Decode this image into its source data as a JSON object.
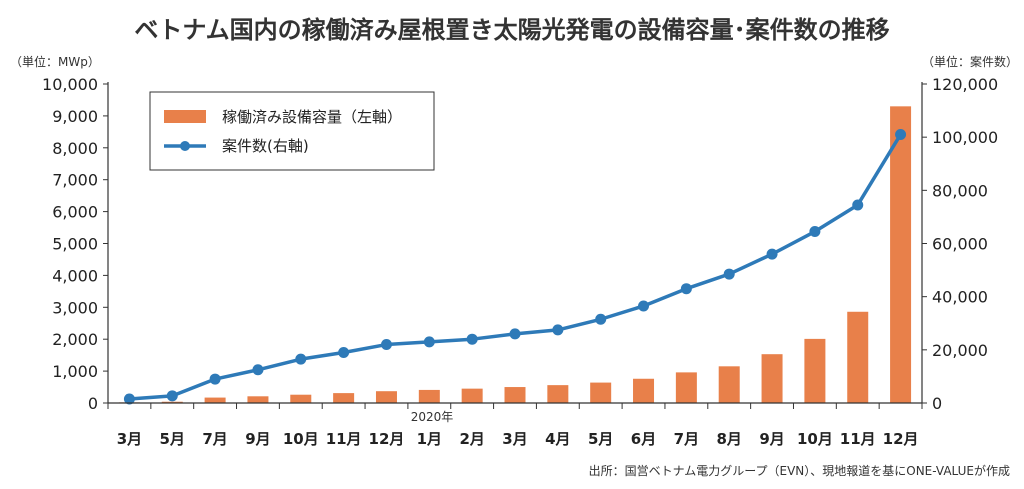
{
  "chart_data": {
    "type": "bar+line",
    "title": "ベトナム国内の稼働済み屋根置き太陽光発電の設備容量･案件数の推移",
    "left_unit": "（単位：MWp）",
    "right_unit": "（単位：案件数）",
    "year_label": "2020年",
    "source": "出所：国営ベトナム電力グループ（EVN）、現地報道を基にONE-VALUEが作成",
    "categories": [
      "3月",
      "5月",
      "7月",
      "9月",
      "10月",
      "11月",
      "12月",
      "1月",
      "2月",
      "3月",
      "4月",
      "5月",
      "6月",
      "7月",
      "8月",
      "9月",
      "10月",
      "11月",
      "12月"
    ],
    "left_axis": {
      "min": 0,
      "max": 10000,
      "ticks": [
        0,
        1000,
        2000,
        3000,
        4000,
        5000,
        6000,
        7000,
        8000,
        9000,
        10000
      ],
      "tick_labels": [
        "0",
        "1,000",
        "2,000",
        "3,000",
        "4,000",
        "5,000",
        "6,000",
        "7,000",
        "8,000",
        "9,000",
        "10,000"
      ]
    },
    "right_axis": {
      "min": 0,
      "max": 120000,
      "ticks": [
        0,
        20000,
        40000,
        60000,
        80000,
        100000,
        120000
      ],
      "tick_labels": [
        "0",
        "20,000",
        "40,000",
        "60,000",
        "80,000",
        "100,000",
        "120,000"
      ]
    },
    "series": [
      {
        "name": "稼働済み設備容量（左軸）",
        "type": "bar",
        "axis": "left",
        "color": "#e8804a",
        "values": [
          20,
          40,
          170,
          210,
          260,
          310,
          370,
          410,
          450,
          500,
          560,
          640,
          760,
          960,
          1150,
          1530,
          2010,
          2860,
          9300
        ]
      },
      {
        "name": "案件数(右軸)",
        "type": "line",
        "axis": "right",
        "color": "#2e7ab8",
        "values": [
          1500,
          2700,
          9000,
          12500,
          16500,
          19000,
          22000,
          23000,
          24000,
          26000,
          27500,
          31500,
          36500,
          43000,
          48500,
          56000,
          64500,
          74500,
          101000
        ]
      }
    ],
    "legend_position": "top-left",
    "grid": false
  }
}
